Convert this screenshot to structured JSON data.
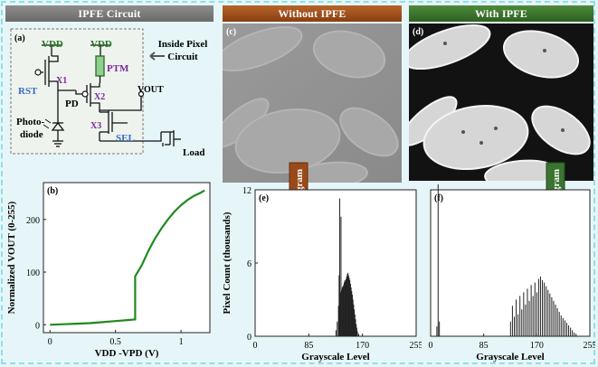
{
  "banners": {
    "circuit": "IPFE Circuit",
    "without": "Without IPFE",
    "with": "With IPFE"
  },
  "circuit": {
    "panel_label": "(a)",
    "vdd1": "VDD",
    "vdd2": "VDD",
    "ptm": "PTM",
    "inside_pixel_line1": "Inside Pixel",
    "inside_pixel_line2": "Circuit",
    "rst": "RST",
    "x1": "X1",
    "pd": "PD",
    "x2": "X2",
    "x3": "X3",
    "vout": "VOUT",
    "photo_line1": "Photo-",
    "photo_line2": "diode",
    "sel": "SEL",
    "load": "Load"
  },
  "panel_b": {
    "label": "(b)"
  },
  "panel_c": {
    "label": "(c)"
  },
  "panel_d": {
    "label": "(d)"
  },
  "panel_e": {
    "label": "(e)"
  },
  "panel_f": {
    "label": "(f)"
  },
  "arrows": {
    "left": "Histogram",
    "right": "Histogram"
  },
  "colors": {
    "banner_gray": "#7a7a7a",
    "banner_brown": "#9a4a1a",
    "banner_green": "#3a7430",
    "curve": "#1e8a1e",
    "circuit_purple": "#7a2a9a",
    "circuit_blue": "#3a6ac8"
  },
  "chart_data": [
    {
      "id": "b",
      "type": "line",
      "title": "",
      "xlabel": "VDD -VPD (V)",
      "ylabel": "Normalized VOUT (0-255)",
      "xlim": [
        -0.05,
        1.22
      ],
      "ylim": [
        -15,
        270
      ],
      "xticks": [
        0,
        0.5,
        1
      ],
      "xtick_labels": [
        "0",
        "0.5",
        "1"
      ],
      "yticks": [
        0,
        100,
        200
      ],
      "ytick_labels": [
        "0",
        "100",
        "200"
      ],
      "x": [
        0,
        0.1,
        0.2,
        0.3,
        0.4,
        0.5,
        0.6,
        0.65,
        0.65,
        0.7,
        0.75,
        0.8,
        0.85,
        0.9,
        0.95,
        1.0,
        1.05,
        1.1,
        1.15,
        1.18
      ],
      "y": [
        0,
        1,
        2,
        3,
        5,
        7,
        9,
        10,
        92,
        113,
        140,
        163,
        183,
        200,
        215,
        227,
        237,
        245,
        251,
        255
      ]
    },
    {
      "id": "e",
      "type": "bar",
      "title": "",
      "xlabel": "Grayscale Level",
      "ylabel": "Pixel Count (thousands)",
      "xlim": [
        0,
        255
      ],
      "ylim": [
        0,
        12
      ],
      "xticks": [
        0,
        85,
        170,
        255
      ],
      "xtick_labels": [
        "0",
        "85",
        "170",
        "255"
      ],
      "yticks": [
        0,
        6,
        12
      ],
      "ytick_labels": [
        "0",
        "6",
        "12"
      ],
      "bins": [
        128,
        130,
        132,
        133,
        134,
        135,
        136,
        137,
        138,
        139,
        140,
        141,
        142,
        143,
        144,
        145,
        146,
        147,
        148,
        149,
        150,
        151,
        152,
        153,
        154,
        155,
        156,
        157,
        158,
        159,
        160,
        161,
        162,
        164
      ],
      "values": [
        0.5,
        1.2,
        2.5,
        5.0,
        11.3,
        3.6,
        9.8,
        3.8,
        4.0,
        4.1,
        4.2,
        4.4,
        4.6,
        4.5,
        4.7,
        4.9,
        5.1,
        5.2,
        5.0,
        4.8,
        4.6,
        4.3,
        4.0,
        3.7,
        3.4,
        3.0,
        2.6,
        2.2,
        1.8,
        1.4,
        1.0,
        0.7,
        0.4,
        0.2
      ]
    },
    {
      "id": "f",
      "type": "bar",
      "title": "",
      "xlabel": "Grayscale Level",
      "ylabel": "",
      "xlim": [
        0,
        255
      ],
      "ylim": [
        0,
        12
      ],
      "xticks": [
        0,
        85,
        170,
        255
      ],
      "xtick_labels": [
        "0",
        "85",
        "170",
        "255"
      ],
      "yticks": [],
      "ytick_labels": [],
      "bins": [
        10,
        12,
        14,
        128,
        131,
        134,
        137,
        140,
        143,
        146,
        149,
        152,
        155,
        158,
        161,
        164,
        167,
        170,
        173,
        176,
        179,
        182,
        185,
        188,
        191,
        194,
        197,
        200,
        203,
        206,
        209,
        212,
        215,
        218,
        221,
        224,
        227,
        230,
        233
      ],
      "values": [
        0.8,
        12.8,
        1.2,
        1.2,
        2.5,
        1.6,
        3.0,
        1.8,
        3.3,
        2.2,
        3.6,
        2.6,
        3.9,
        2.9,
        4.2,
        3.3,
        4.4,
        3.6,
        4.7,
        4.9,
        4.6,
        4.4,
        4.1,
        3.8,
        3.5,
        3.2,
        2.9,
        2.6,
        2.3,
        2.0,
        1.7,
        1.5,
        1.3,
        1.1,
        0.9,
        0.7,
        0.5,
        0.3,
        0.2
      ]
    }
  ]
}
